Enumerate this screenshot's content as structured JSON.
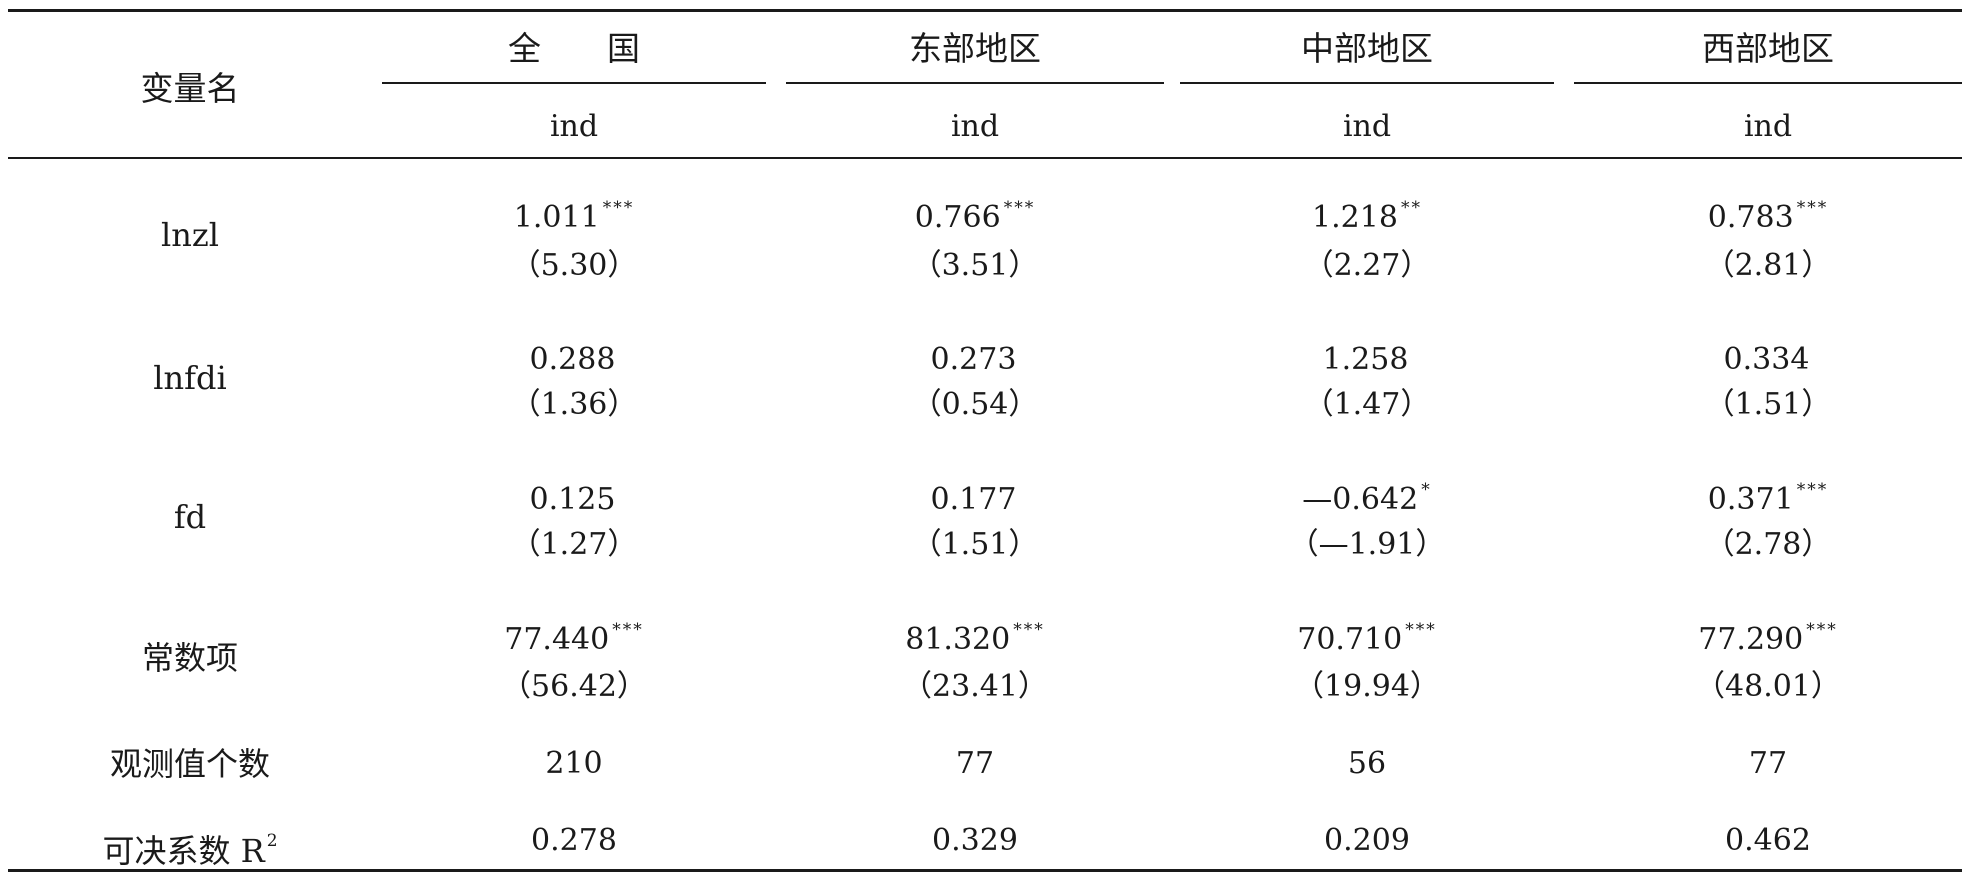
{
  "header": {
    "var_label": "变量名",
    "columns": [
      "全　　国",
      "东部地区",
      "中部地区",
      "西部地区"
    ],
    "dep_var": [
      "ind",
      "ind",
      "ind",
      "ind"
    ]
  },
  "rows": [
    {
      "label": "lnzl",
      "coef": [
        "1.011",
        "0.766",
        "1.218",
        "0.783"
      ],
      "stars": [
        "***",
        "***",
        "**",
        "***"
      ],
      "tstat": [
        "（5.30）",
        "（3.51）",
        "（2.27）",
        "（2.81）"
      ]
    },
    {
      "label": "lnfdi",
      "coef": [
        "0.288",
        "0.273",
        "1.258",
        "0.334"
      ],
      "stars": [
        "",
        "",
        "",
        ""
      ],
      "tstat": [
        "（1.36）",
        "（0.54）",
        "（1.47）",
        "（1.51）"
      ]
    },
    {
      "label": "fd",
      "coef": [
        "0.125",
        "0.177",
        "—0.642",
        "0.371"
      ],
      "stars": [
        "",
        "",
        "*",
        "***"
      ],
      "tstat": [
        "（1.27）",
        "（1.51）",
        "（—1.91）",
        "（2.78）"
      ]
    },
    {
      "label": "常数项",
      "coef": [
        "77.440",
        "81.320",
        "70.710",
        "77.290"
      ],
      "stars": [
        "***",
        "***",
        "***",
        "***"
      ],
      "tstat": [
        "（56.42）",
        "（23.41）",
        "（19.94）",
        "（48.01）"
      ]
    }
  ],
  "obs": {
    "label": "观测值个数",
    "values": [
      "210",
      "77",
      "56",
      "77"
    ]
  },
  "r2": {
    "label": "可决系数 R",
    "sup": "2",
    "values": [
      "0.278",
      "0.329",
      "0.209",
      "0.462"
    ]
  }
}
